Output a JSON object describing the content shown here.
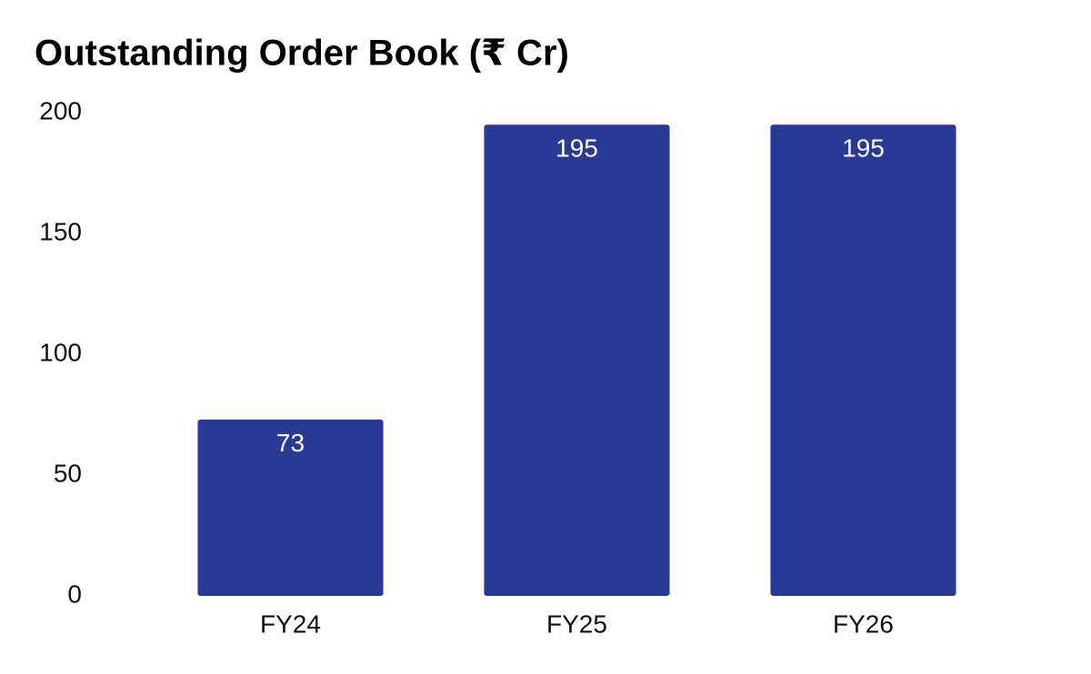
{
  "chart_data": {
    "type": "bar",
    "title": "Outstanding Order Book (₹ Cr)",
    "categories": [
      "FY24",
      "FY25",
      "FY26"
    ],
    "values": [
      73,
      195,
      195
    ],
    "color": "#283a96",
    "ylim": [
      0,
      200
    ],
    "yticks": [
      0,
      50,
      100,
      150,
      200
    ],
    "grid": false
  }
}
